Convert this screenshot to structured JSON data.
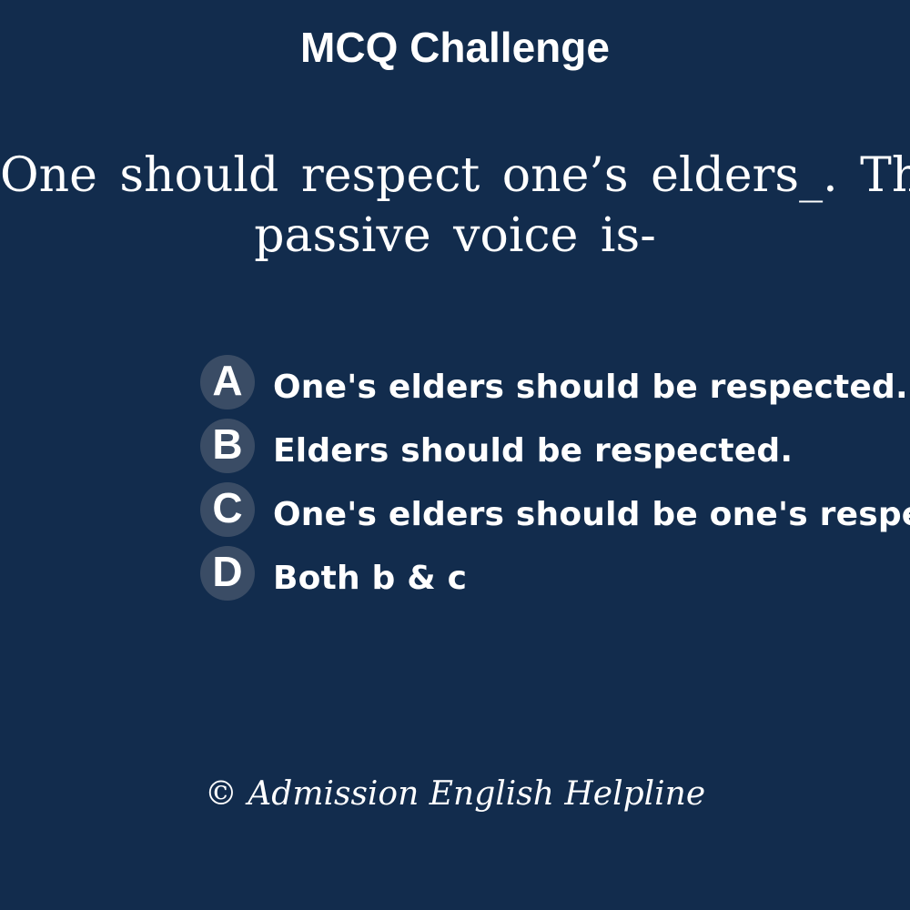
{
  "header": {
    "title": "MCQ Challenge"
  },
  "question": {
    "line1": "One should respect one’s elders_. The",
    "line2": "passive voice is-"
  },
  "options": [
    {
      "letter": "A",
      "text": "One's elders should be respected."
    },
    {
      "letter": "B",
      "text": "Elders should be respected."
    },
    {
      "letter": "C",
      "text": "One's elders should be one's respected."
    },
    {
      "letter": "D",
      "text": "Both b & c"
    }
  ],
  "footer": {
    "copyright": "© Admission English Helpline"
  },
  "colors": {
    "background": "#122c4d",
    "badge": "#3a4c65",
    "text": "#ffffff"
  }
}
